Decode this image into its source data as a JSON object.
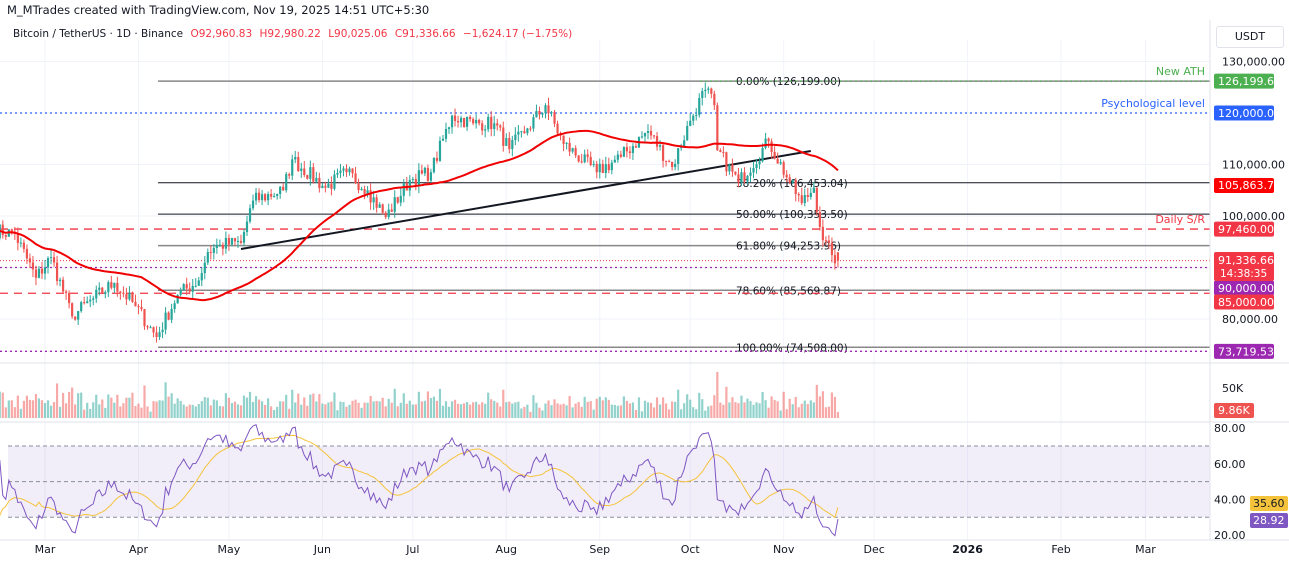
{
  "header": {
    "credit": "M_MTrades created with TradingView.com, Nov 19, 2025 14:51 UTC+5:30",
    "symbol": "Bitcoin / TetherUS · 1D · Binance",
    "open": "O92,960.83",
    "high": "H92,980.22",
    "low": "L90,025.06",
    "close": "C91,336.66",
    "change": "−1,624.17 (−1.75%)",
    "currency": "USDT"
  },
  "colors": {
    "up": "#26a69a",
    "down": "#ef5350",
    "ma": "#f00000",
    "rsi": "#7e57c2",
    "rsi_ma": "#f5c33b",
    "ath": "#4caf50",
    "psych": "#2962ff",
    "sr": "#f23645",
    "purple": "#9c27b0"
  },
  "chart_data": {
    "type": "candlestick",
    "symbol": "BTCUSDT",
    "interval": "1D",
    "ylim": [
      72000,
      132000
    ],
    "y_ticks": [
      "130,000.00",
      "110,000.00",
      "100,000.00",
      "80,000.00"
    ],
    "y_tick_values": [
      130000,
      110000,
      100000,
      80000
    ],
    "x_ticks": [
      {
        "label": "Mar",
        "date": "2025-03-01"
      },
      {
        "label": "Apr",
        "date": "2025-04-01"
      },
      {
        "label": "May",
        "date": "2025-05-01"
      },
      {
        "label": "Jun",
        "date": "2025-06-01"
      },
      {
        "label": "Jul",
        "date": "2025-07-01"
      },
      {
        "label": "Aug",
        "date": "2025-08-01"
      },
      {
        "label": "Sep",
        "date": "2025-09-01"
      },
      {
        "label": "Oct",
        "date": "2025-10-01"
      },
      {
        "label": "Nov",
        "date": "2025-11-01"
      },
      {
        "label": "Dec",
        "date": "2025-12-01"
      },
      {
        "label": "2026",
        "date": "2026-01-01"
      },
      {
        "label": "Feb",
        "date": "2026-02-01"
      },
      {
        "label": "Mar",
        "date": "2026-03-01"
      }
    ],
    "close_series": [
      [
        "2025-02-12",
        97300
      ],
      [
        "2025-02-19",
        96500
      ],
      [
        "2025-02-26",
        88000
      ],
      [
        "2025-03-03",
        92000
      ],
      [
        "2025-03-10",
        80500
      ],
      [
        "2025-03-17",
        84000
      ],
      [
        "2025-03-24",
        87000
      ],
      [
        "2025-03-31",
        82500
      ],
      [
        "2025-04-07",
        76500
      ],
      [
        "2025-04-14",
        84700
      ],
      [
        "2025-04-21",
        87500
      ],
      [
        "2025-04-24",
        93000
      ],
      [
        "2025-04-28",
        94400
      ],
      [
        "2025-05-05",
        94800
      ],
      [
        "2025-05-09",
        103000
      ],
      [
        "2025-05-19",
        105000
      ],
      [
        "2025-05-22",
        111000
      ],
      [
        "2025-06-02",
        105500
      ],
      [
        "2025-06-09",
        108500
      ],
      [
        "2025-06-16",
        105000
      ],
      [
        "2025-06-22",
        99800
      ],
      [
        "2025-06-30",
        107000
      ],
      [
        "2025-07-07",
        108500
      ],
      [
        "2025-07-14",
        119500
      ],
      [
        "2025-07-21",
        118000
      ],
      [
        "2025-07-28",
        118000
      ],
      [
        "2025-08-02",
        113000
      ],
      [
        "2025-08-08",
        117000
      ],
      [
        "2025-08-14",
        121500
      ],
      [
        "2025-08-20",
        114000
      ],
      [
        "2025-08-31",
        108500
      ],
      [
        "2025-09-08",
        111500
      ],
      [
        "2025-09-17",
        116500
      ],
      [
        "2025-09-25",
        109500
      ],
      [
        "2025-10-01",
        118500
      ],
      [
        "2025-10-06",
        124500
      ],
      [
        "2025-10-09",
        121500
      ],
      [
        "2025-10-10",
        112800
      ],
      [
        "2025-10-17",
        106500
      ],
      [
        "2025-10-27",
        114500
      ],
      [
        "2025-11-03",
        106500
      ],
      [
        "2025-11-07",
        102500
      ],
      [
        "2025-11-11",
        105500
      ],
      [
        "2025-11-14",
        95300
      ],
      [
        "2025-11-17",
        92400
      ],
      [
        "2025-11-19",
        91336.66
      ]
    ],
    "last_candle": {
      "open": 92960.83,
      "high": 92980.22,
      "low": 90025.06,
      "close": 91336.66
    },
    "moving_average": {
      "type": "SMA",
      "length": 50,
      "last_value": "105,863.79"
    },
    "trendline": {
      "start": [
        "2025-05-05",
        94800
      ],
      "end": [
        "2025-11-10",
        113000
      ]
    },
    "fibonacci": [
      {
        "label": "0.00% (126,199.00)",
        "price": 126199
      },
      {
        "label": "38.20% (106,453.04)",
        "price": 106453.04
      },
      {
        "label": "50.00% (100,353.50)",
        "price": 100353.5
      },
      {
        "label": "61.80% (94,253.96)",
        "price": 94253.96
      },
      {
        "label": "78.60% (85,569.87)",
        "price": 85569.87
      },
      {
        "label": "100.00% (74,508.00)",
        "price": 74508
      }
    ],
    "levels": [
      {
        "name": "New ATH",
        "price": 126199.63,
        "label": "126,199.63",
        "color": "#4caf50"
      },
      {
        "name": "Psychological level",
        "price": 120000,
        "label": "120,000.00",
        "color": "#2962ff"
      },
      {
        "name": "Daily S/R",
        "price": 97460,
        "label": "97,460.00",
        "color": "#f23645"
      },
      {
        "name": "",
        "price": 90000,
        "label": "90,000.00",
        "color": "#9c27b0"
      },
      {
        "name": "",
        "price": 85000,
        "label": "85,000.00",
        "color": "#f23645"
      },
      {
        "name": "",
        "price": 73719.53,
        "label": "73,719.53",
        "color": "#9c27b0"
      }
    ],
    "current_price": {
      "label": "91,336.66",
      "countdown": "14:38:35"
    },
    "volume": {
      "y_tick": "50K",
      "last": "9.86K",
      "ylim_k": [
        0,
        85
      ]
    },
    "rsi": {
      "y_ticks": [
        "80.00",
        "60.00",
        "40.00",
        "20.00"
      ],
      "bands": [
        70,
        50,
        30
      ],
      "value": "28.92",
      "ma_value": "35.60",
      "ylim": [
        17,
        83
      ]
    }
  }
}
